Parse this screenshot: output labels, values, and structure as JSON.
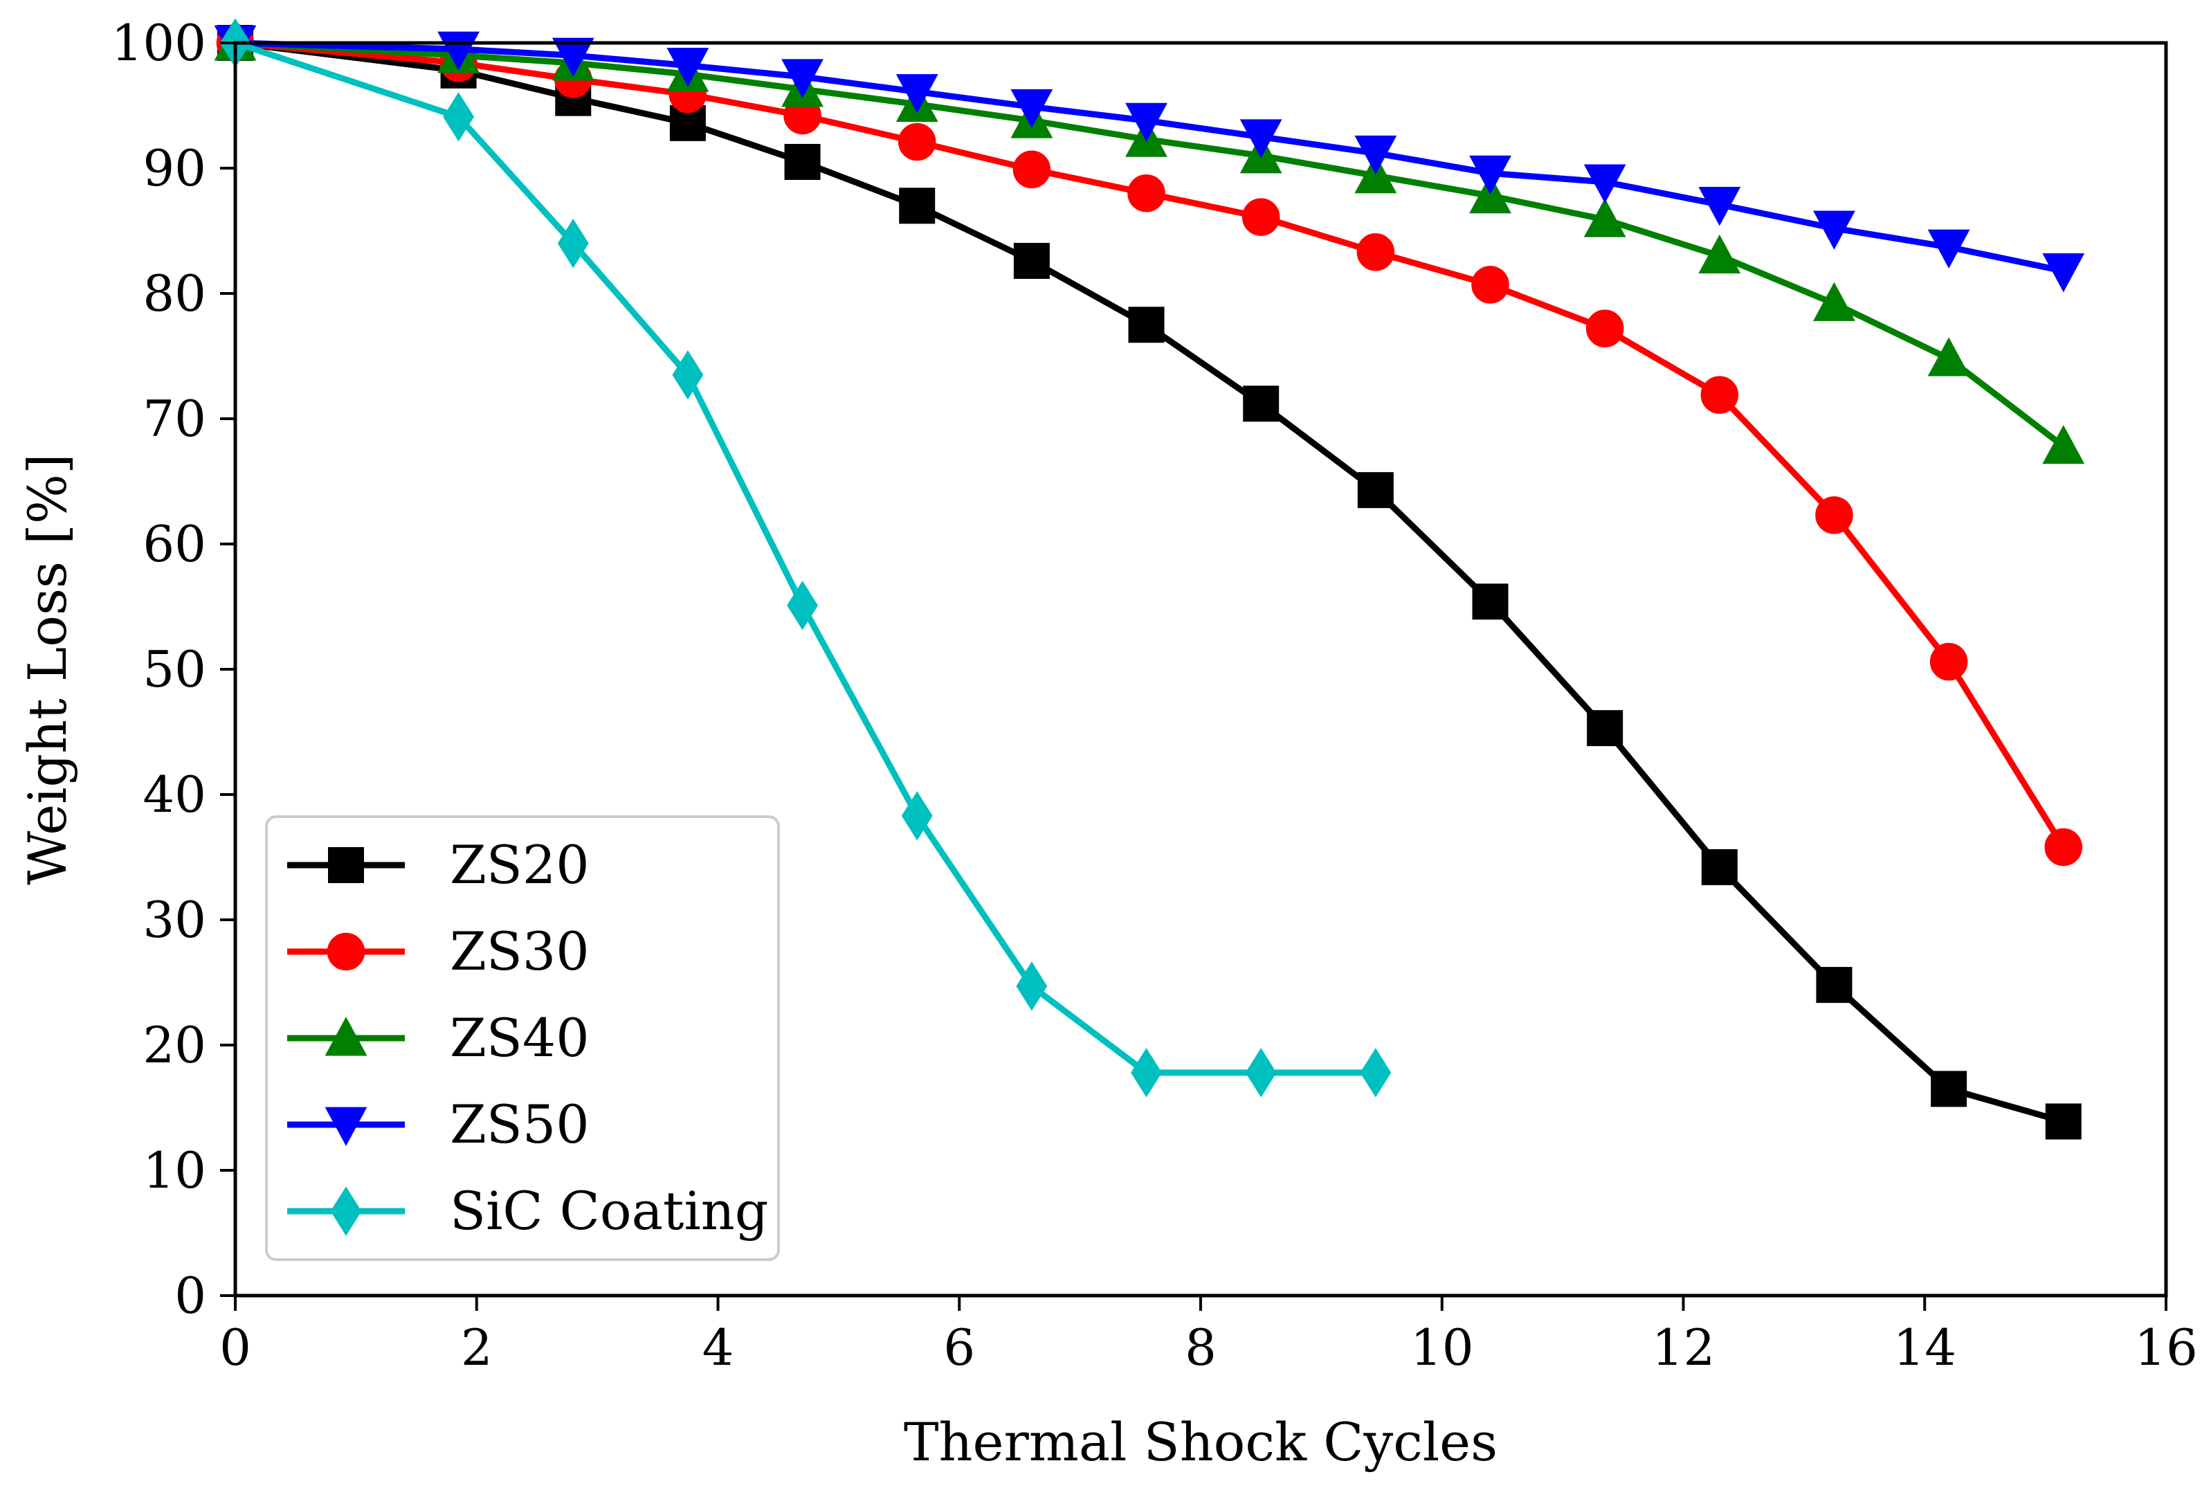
{
  "chart_data": {
    "type": "line",
    "title": "",
    "xlabel": "Thermal Shock Cycles",
    "ylabel": "Weight Loss [%]",
    "xlim": [
      0,
      16
    ],
    "ylim": [
      0,
      100
    ],
    "xticks": [
      0,
      2,
      4,
      6,
      8,
      10,
      12,
      14,
      16
    ],
    "yticks": [
      0,
      10,
      20,
      30,
      40,
      50,
      60,
      70,
      80,
      90,
      100
    ],
    "xtick_labels": [
      "0",
      "2",
      "4",
      "6",
      "8",
      "10",
      "12",
      "14",
      "16"
    ],
    "ytick_labels": [
      "0",
      "10",
      "20",
      "30",
      "40",
      "50",
      "60",
      "70",
      "80",
      "90",
      "100"
    ],
    "grid": false,
    "legend_position": "bottom-left",
    "series": [
      {
        "name": "ZS20",
        "color": "#000000",
        "marker": "square",
        "x": [
          0,
          1.85,
          2.8,
          3.75,
          4.7,
          5.65,
          6.6,
          7.55,
          8.5,
          9.45,
          10.4,
          11.35,
          12.3,
          13.25,
          14.2,
          15.15
        ],
        "y": [
          100,
          97.8,
          95.6,
          93.6,
          90.5,
          87.0,
          82.6,
          77.5,
          71.2,
          64.3,
          55.4,
          45.3,
          34.2,
          24.8,
          16.5,
          13.9
        ]
      },
      {
        "name": "ZS30",
        "color": "#ff0000",
        "marker": "circle",
        "x": [
          0,
          1.85,
          2.8,
          3.75,
          4.7,
          5.65,
          6.6,
          7.55,
          8.5,
          9.45,
          10.4,
          11.35,
          12.3,
          13.25,
          14.2,
          15.15
        ],
        "y": [
          100,
          98.4,
          97.1,
          95.9,
          94.2,
          92.1,
          89.9,
          88.0,
          86.1,
          83.3,
          80.7,
          77.2,
          71.9,
          62.3,
          50.6,
          35.8
        ]
      },
      {
        "name": "ZS40",
        "color": "#008000",
        "marker": "triangle-up",
        "x": [
          0,
          1.85,
          2.8,
          3.75,
          4.7,
          5.65,
          6.6,
          7.55,
          8.5,
          9.45,
          10.4,
          11.35,
          12.3,
          13.25,
          14.2,
          15.15
        ],
        "y": [
          100,
          99.0,
          98.4,
          97.5,
          96.3,
          95.1,
          93.8,
          92.3,
          91.0,
          89.4,
          87.8,
          85.9,
          83.0,
          79.2,
          74.8,
          67.8
        ]
      },
      {
        "name": "ZS50",
        "color": "#0000ff",
        "marker": "triangle-down",
        "x": [
          0,
          1.85,
          2.8,
          3.75,
          4.7,
          5.65,
          6.6,
          7.55,
          8.5,
          9.45,
          10.4,
          11.35,
          12.3,
          13.25,
          14.2,
          15.15
        ],
        "y": [
          100,
          99.5,
          99.0,
          98.2,
          97.3,
          96.1,
          94.9,
          93.8,
          92.5,
          91.2,
          89.6,
          88.9,
          87.1,
          85.2,
          83.7,
          81.8
        ]
      },
      {
        "name": "SiC Coating",
        "color": "#00bfbf",
        "marker": "diamond",
        "x": [
          0,
          1.85,
          2.8,
          3.75,
          4.7,
          5.65,
          6.6,
          7.55,
          8.5,
          9.45
        ],
        "y": [
          100,
          94.1,
          84.0,
          73.5,
          55.1,
          38.3,
          24.7,
          17.8,
          17.8,
          17.8
        ]
      }
    ]
  }
}
